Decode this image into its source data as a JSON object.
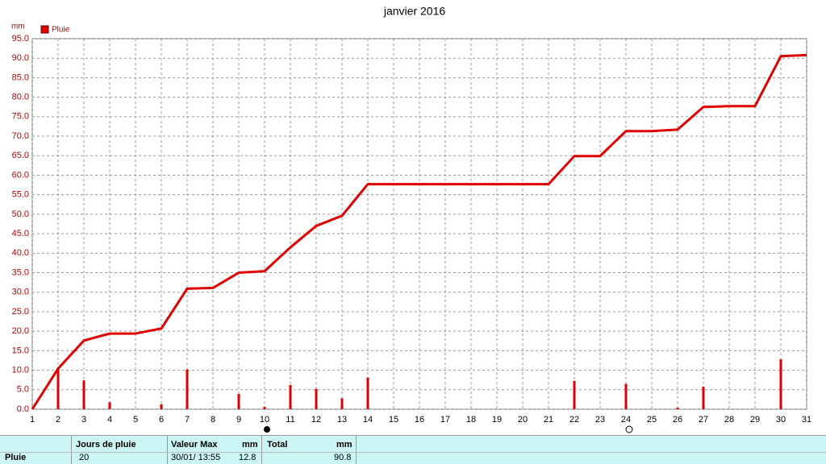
{
  "chart_data": {
    "type": "combo",
    "title": "janvier 2016",
    "y_unit": "mm",
    "x": [
      1,
      2,
      3,
      4,
      5,
      6,
      7,
      8,
      9,
      10,
      11,
      12,
      13,
      14,
      15,
      16,
      17,
      18,
      19,
      20,
      21,
      22,
      23,
      24,
      25,
      26,
      27,
      28,
      29,
      30,
      31
    ],
    "xlim": [
      1,
      31
    ],
    "ylim": [
      0,
      95
    ],
    "yticks": [
      {
        "value": 0,
        "label": "0.0"
      },
      {
        "value": 5,
        "label": "5.0"
      },
      {
        "value": 10,
        "label": "10.0"
      },
      {
        "value": 15,
        "label": "15.0"
      },
      {
        "value": 20,
        "label": "20.0"
      },
      {
        "value": 25,
        "label": "25.0"
      },
      {
        "value": 30,
        "label": "30.0"
      },
      {
        "value": 35,
        "label": "35.0"
      },
      {
        "value": 40,
        "label": "40.0"
      },
      {
        "value": 45,
        "label": "45.0"
      },
      {
        "value": 50,
        "label": "50.0"
      },
      {
        "value": 55,
        "label": "55.0"
      },
      {
        "value": 60,
        "label": "60.0"
      },
      {
        "value": 65,
        "label": "65.0"
      },
      {
        "value": 70,
        "label": "70.0"
      },
      {
        "value": 75,
        "label": "75.0"
      },
      {
        "value": 80,
        "label": "80.0"
      },
      {
        "value": 85,
        "label": "85.0"
      },
      {
        "value": 90,
        "label": "90.0"
      },
      {
        "value": 95,
        "label": "95.0"
      }
    ],
    "grid": true,
    "series": [
      {
        "name": "Pluie",
        "type": "line",
        "color": "#e00000",
        "values": [
          0,
          10.4,
          17.6,
          19.4,
          19.4,
          20.7,
          30.9,
          31.1,
          35.0,
          35.4,
          41.5,
          47.0,
          49.6,
          57.7,
          57.7,
          57.7,
          57.7,
          57.7,
          57.7,
          57.7,
          57.7,
          64.9,
          64.9,
          71.3,
          71.3,
          71.7,
          77.5,
          77.7,
          77.7,
          90.5,
          90.8
        ]
      },
      {
        "type": "bar",
        "color": "#e00000",
        "values": [
          0,
          10.4,
          7.4,
          1.8,
          0,
          1.3,
          10.2,
          0,
          3.9,
          0.6,
          6.2,
          5.2,
          2.8,
          8.1,
          0,
          0,
          0,
          0,
          0,
          0,
          0,
          7.3,
          0,
          6.5,
          0,
          0.4,
          5.8,
          0,
          0,
          12.8,
          0
        ]
      }
    ]
  },
  "summary": {
    "label": "Pluie",
    "rain_days_header": "Jours de pluie",
    "rain_days": 20,
    "max_header": "Valeur Max",
    "max_unit": "mm",
    "max_date": "30/01/ 13:55",
    "max_value": 12.8,
    "total_header": "Total",
    "total_unit": "mm",
    "total": 90.8
  }
}
